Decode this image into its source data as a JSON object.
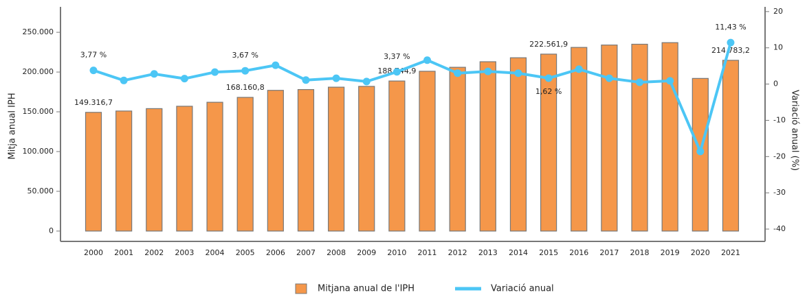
{
  "chart_data": {
    "type": "bar",
    "y_label": "Mitja anual IPH",
    "y2_label": "Variació anual (%)",
    "categories": [
      "2000",
      "2001",
      "2002",
      "2003",
      "2004",
      "2005",
      "2006",
      "2007",
      "2008",
      "2009",
      "2010",
      "2011",
      "2012",
      "2013",
      "2014",
      "2015",
      "2016",
      "2017",
      "2018",
      "2019",
      "2020",
      "2021"
    ],
    "series": [
      {
        "name": "Mitjana anual de l'IPH",
        "type": "bar",
        "color": "#f5974a",
        "values": [
          149316.7,
          151000,
          154000,
          157000,
          162000,
          168160.8,
          177000,
          178000,
          181000,
          182000,
          188744.9,
          201000,
          206000,
          213000,
          218000,
          222561.9,
          231000,
          234000,
          235000,
          237000,
          192000,
          214783.2
        ],
        "value_labels": [
          "149.316,7",
          null,
          null,
          null,
          null,
          "168.160,8",
          null,
          null,
          null,
          null,
          "188.744,9",
          null,
          null,
          null,
          null,
          "222.561,9",
          null,
          null,
          null,
          null,
          null,
          "214.783,2"
        ]
      },
      {
        "name": "Variació anual",
        "type": "line",
        "axis": "y2",
        "color": "#4cc6f5",
        "values": [
          3.77,
          1.0,
          2.8,
          1.5,
          3.3,
          3.67,
          5.2,
          1.1,
          1.6,
          0.7,
          3.37,
          6.6,
          3.0,
          3.5,
          3.0,
          1.62,
          4.1,
          1.6,
          0.5,
          0.9,
          -18.6,
          11.43
        ],
        "value_labels": [
          "3,77 %",
          null,
          null,
          null,
          null,
          "3,67 %",
          null,
          null,
          null,
          null,
          "3,37 %",
          null,
          null,
          null,
          null,
          "1,62 %",
          null,
          null,
          null,
          null,
          null,
          "11,43 %"
        ]
      }
    ],
    "ylim": [
      -13000,
      282000
    ],
    "yticks": [
      0,
      {
        "value": 50000,
        "label": "50.000"
      },
      {
        "value": 100000,
        "label": "100.000"
      },
      {
        "value": 150000,
        "label": "150.000"
      },
      {
        "value": 200000,
        "label": "200.000"
      },
      {
        "value": 250000,
        "label": "250.000"
      }
    ],
    "y2lim": [
      -43.4,
      21.3
    ],
    "y2ticks": [
      -40,
      -30,
      -20,
      -10,
      0,
      10,
      20
    ]
  }
}
